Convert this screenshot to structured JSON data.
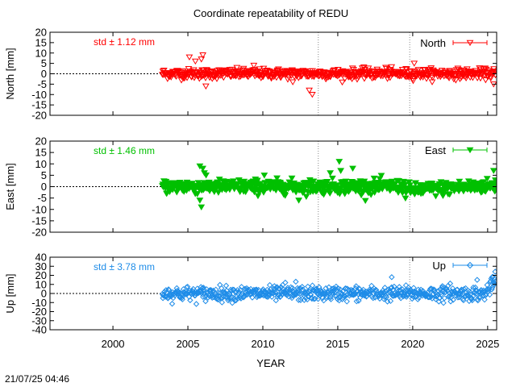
{
  "title": "Coordinate repeatability of REDU",
  "timestamp": "21/07/25 04:46",
  "chart_data": [
    {
      "type": "scatter",
      "component": "North",
      "ylabel": "North [mm]",
      "std_label": "std ± 1.12 mm",
      "legend": "North",
      "marker": "triangle-down-open",
      "color": "#ff0000",
      "ylim": [
        -20,
        20
      ],
      "yticks": [
        20,
        15,
        10,
        5,
        0,
        -5,
        -10,
        -15,
        -20
      ],
      "ytick_labels": [
        "20",
        "15",
        "10",
        "5",
        "0",
        "-5",
        "-10",
        "-15",
        "-20"
      ],
      "data_start": 2003.3,
      "data_end": 2025.55,
      "std": 1.12,
      "outliers": [
        [
          2005.1,
          8
        ],
        [
          2005.5,
          6
        ],
        [
          2005.9,
          7
        ],
        [
          2006.0,
          9
        ],
        [
          2006.2,
          -6
        ],
        [
          2009.4,
          4
        ],
        [
          2012.0,
          -4
        ],
        [
          2013.1,
          -8
        ],
        [
          2013.3,
          -10
        ],
        [
          2016.8,
          2
        ],
        [
          2018.2,
          3
        ],
        [
          2020.1,
          5
        ],
        [
          2025.4,
          -5
        ]
      ]
    },
    {
      "type": "scatter",
      "component": "East",
      "ylabel": "East [mm]",
      "std_label": "std ± 1.46 mm",
      "legend": "East",
      "marker": "triangle-down-filled",
      "color": "#00c000",
      "ylim": [
        -20,
        20
      ],
      "yticks": [
        20,
        15,
        10,
        5,
        0,
        -5,
        -10,
        -15,
        -20
      ],
      "ytick_labels": [
        "20",
        "15",
        "10",
        "5",
        "0",
        "-5",
        "-10",
        "-15",
        "-20"
      ],
      "data_start": 2003.3,
      "data_end": 2025.55,
      "std": 1.46,
      "outliers": [
        [
          2005.8,
          9
        ],
        [
          2006.0,
          8
        ],
        [
          2006.1,
          6
        ],
        [
          2005.9,
          -9
        ],
        [
          2005.8,
          -6
        ],
        [
          2010.1,
          5
        ],
        [
          2012.4,
          -6
        ],
        [
          2014.5,
          6
        ],
        [
          2015.1,
          11
        ],
        [
          2015.2,
          7
        ],
        [
          2016.0,
          8
        ],
        [
          2016.2,
          -2
        ],
        [
          2025.4,
          7
        ]
      ]
    },
    {
      "type": "scatter",
      "component": "Up",
      "ylabel": "Up [mm]",
      "std_label": "std ± 3.78 mm",
      "legend": "Up",
      "marker": "diamond-open",
      "color": "#1e8ce8",
      "ylim": [
        -40,
        40
      ],
      "yticks": [
        40,
        30,
        20,
        10,
        0,
        -10,
        -20,
        -30,
        -40
      ],
      "ytick_labels": [
        "40",
        "30",
        "20",
        "10",
        "0",
        "-10",
        "-20",
        "-30",
        "-40"
      ],
      "data_start": 2003.3,
      "data_end": 2025.55,
      "std": 3.78,
      "outliers": [
        [
          2011.5,
          12
        ],
        [
          2012.2,
          13
        ],
        [
          2018.6,
          18
        ],
        [
          2022.5,
          11
        ],
        [
          2024.3,
          15
        ],
        [
          2025.3,
          18
        ],
        [
          2025.5,
          24
        ]
      ]
    }
  ],
  "x_axis": {
    "label": "YEAR",
    "xlim": [
      1995.8,
      2025.6
    ],
    "ticks": [
      2000,
      2005,
      2010,
      2015,
      2020,
      2025
    ],
    "tick_labels": [
      "2000",
      "2005",
      "2010",
      "2015",
      "2020",
      "2025"
    ],
    "vlines": [
      2013.7,
      2019.8
    ]
  }
}
